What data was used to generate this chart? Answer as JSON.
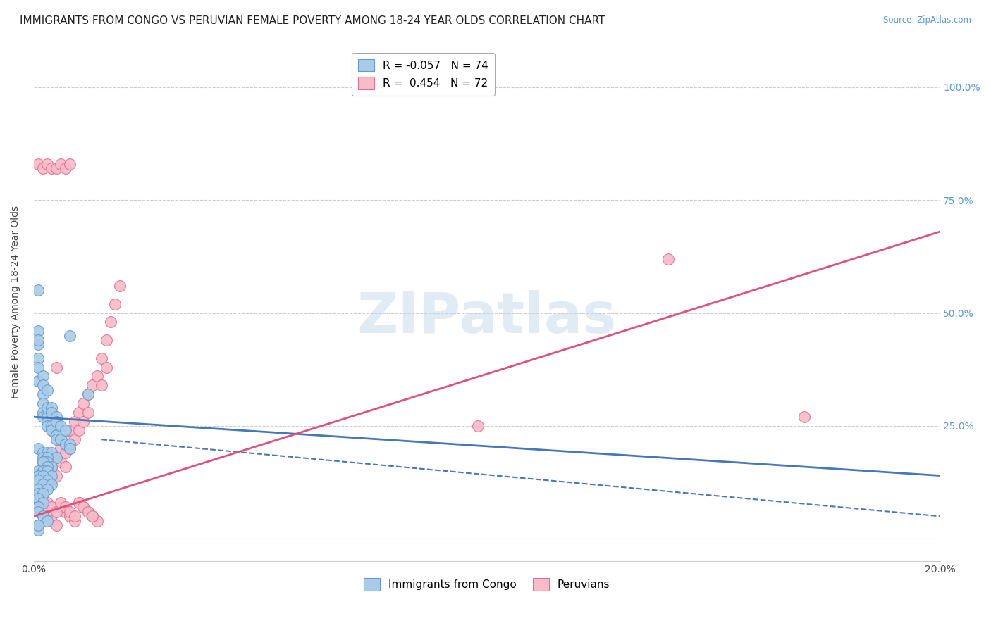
{
  "title": "IMMIGRANTS FROM CONGO VS PERUVIAN FEMALE POVERTY AMONG 18-24 YEAR OLDS CORRELATION CHART",
  "source": "Source: ZipAtlas.com",
  "ylabel": "Female Poverty Among 18-24 Year Olds",
  "xlim": [
    0.0,
    0.2
  ],
  "ylim": [
    -0.05,
    1.1
  ],
  "xtick_vals": [
    0.0,
    0.025,
    0.05,
    0.075,
    0.1,
    0.125,
    0.15,
    0.175,
    0.2
  ],
  "xtick_labels": [
    "0.0%",
    "",
    "",
    "",
    "",
    "",
    "",
    "",
    "20.0%"
  ],
  "ytick_vals_left": [
    0.0,
    0.25,
    0.5,
    0.75,
    1.0
  ],
  "ytick_labels_left": [
    "",
    "",
    "",
    "",
    ""
  ],
  "ytick_vals_right": [
    0.0,
    0.25,
    0.5,
    0.75,
    1.0
  ],
  "ytick_labels_right": [
    "",
    "25.0%",
    "50.0%",
    "75.0%",
    "100.0%"
  ],
  "legend1_entries": [
    {
      "label": "R = -0.057   N = 74"
    },
    {
      "label": "R =  0.454   N = 72"
    }
  ],
  "blue_scatter_x": [
    0.001,
    0.001,
    0.001,
    0.001,
    0.001,
    0.002,
    0.002,
    0.002,
    0.002,
    0.003,
    0.003,
    0.003,
    0.003,
    0.004,
    0.004,
    0.004,
    0.005,
    0.005,
    0.005,
    0.006,
    0.006,
    0.007,
    0.007,
    0.008,
    0.008,
    0.001,
    0.001,
    0.002,
    0.002,
    0.003,
    0.003,
    0.004,
    0.004,
    0.005,
    0.005,
    0.006,
    0.007,
    0.001,
    0.002,
    0.003,
    0.004,
    0.005,
    0.002,
    0.003,
    0.002,
    0.003,
    0.002,
    0.004,
    0.003,
    0.001,
    0.002,
    0.003,
    0.001,
    0.004,
    0.002,
    0.003,
    0.001,
    0.002,
    0.004,
    0.001,
    0.003,
    0.001,
    0.002,
    0.001,
    0.002,
    0.001,
    0.001,
    0.002,
    0.003,
    0.001,
    0.001,
    0.012,
    0.008,
    0.001
  ],
  "blue_scatter_y": [
    0.55,
    0.43,
    0.4,
    0.38,
    0.35,
    0.32,
    0.3,
    0.28,
    0.27,
    0.28,
    0.27,
    0.26,
    0.25,
    0.25,
    0.24,
    0.24,
    0.23,
    0.23,
    0.22,
    0.22,
    0.22,
    0.21,
    0.21,
    0.21,
    0.2,
    0.46,
    0.44,
    0.36,
    0.34,
    0.33,
    0.29,
    0.29,
    0.28,
    0.27,
    0.26,
    0.25,
    0.24,
    0.2,
    0.19,
    0.19,
    0.19,
    0.18,
    0.18,
    0.18,
    0.17,
    0.17,
    0.17,
    0.16,
    0.16,
    0.15,
    0.15,
    0.15,
    0.14,
    0.14,
    0.14,
    0.13,
    0.13,
    0.12,
    0.12,
    0.11,
    0.11,
    0.1,
    0.1,
    0.09,
    0.08,
    0.07,
    0.06,
    0.05,
    0.04,
    0.03,
    0.02,
    0.32,
    0.45,
    0.03
  ],
  "pink_scatter_x": [
    0.001,
    0.001,
    0.002,
    0.002,
    0.003,
    0.003,
    0.004,
    0.004,
    0.005,
    0.005,
    0.006,
    0.006,
    0.007,
    0.007,
    0.008,
    0.008,
    0.009,
    0.009,
    0.01,
    0.01,
    0.011,
    0.011,
    0.012,
    0.012,
    0.013,
    0.014,
    0.015,
    0.015,
    0.016,
    0.016,
    0.017,
    0.018,
    0.019,
    0.002,
    0.003,
    0.004,
    0.005,
    0.006,
    0.007,
    0.008,
    0.009,
    0.01,
    0.011,
    0.012,
    0.013,
    0.014,
    0.002,
    0.003,
    0.004,
    0.005,
    0.006,
    0.007,
    0.008,
    0.009,
    0.01,
    0.011,
    0.012,
    0.013,
    0.003,
    0.005,
    0.007,
    0.14,
    0.17,
    0.098,
    0.001,
    0.002,
    0.003,
    0.004,
    0.005,
    0.006,
    0.007,
    0.008
  ],
  "pink_scatter_y": [
    0.1,
    0.08,
    0.13,
    0.1,
    0.15,
    0.12,
    0.16,
    0.13,
    0.18,
    0.14,
    0.2,
    0.17,
    0.22,
    0.19,
    0.24,
    0.2,
    0.26,
    0.22,
    0.28,
    0.24,
    0.3,
    0.26,
    0.32,
    0.28,
    0.34,
    0.36,
    0.4,
    0.34,
    0.44,
    0.38,
    0.48,
    0.52,
    0.56,
    0.06,
    0.05,
    0.04,
    0.03,
    0.07,
    0.06,
    0.05,
    0.04,
    0.08,
    0.07,
    0.06,
    0.05,
    0.04,
    0.09,
    0.08,
    0.07,
    0.06,
    0.08,
    0.07,
    0.06,
    0.05,
    0.08,
    0.07,
    0.06,
    0.05,
    0.27,
    0.38,
    0.16,
    0.62,
    0.27,
    0.25,
    0.83,
    0.82,
    0.83,
    0.82,
    0.82,
    0.83,
    0.82,
    0.83
  ],
  "blue_line_x": [
    0.0,
    0.2
  ],
  "blue_line_y": [
    0.27,
    0.14
  ],
  "pink_line_x": [
    0.0,
    0.2
  ],
  "pink_line_y": [
    0.05,
    0.68
  ],
  "scatter_color_blue": "#a8cce8",
  "scatter_edgecolor_blue": "#6699cc",
  "scatter_color_pink": "#f8bbc8",
  "scatter_edgecolor_pink": "#e07090",
  "line_color_blue": "#4477bb",
  "line_color_pink": "#e0507a",
  "watermark_text": "ZIPatlas",
  "title_fontsize": 11,
  "axis_label_fontsize": 10,
  "tick_fontsize": 10
}
